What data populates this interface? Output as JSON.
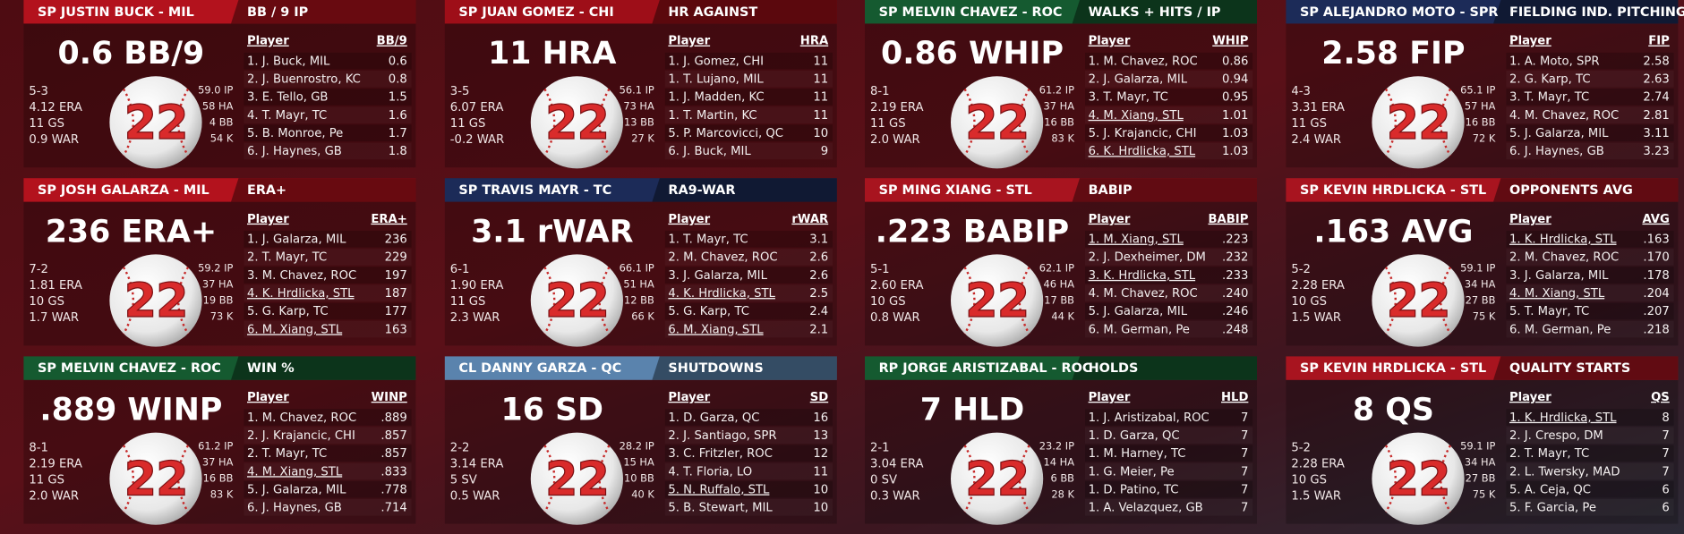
{
  "panels": [
    {
      "header": "SP JUSTIN BUCK - MIL",
      "stat_title": "BB / 9 IP",
      "headline": "0.6 BB/9",
      "header_color": "#b3121d",
      "left_stats": [
        "5-3",
        "4.12 ERA",
        "11 GS",
        "0.9 WAR"
      ],
      "right_stats": [
        "59.0 IP",
        "58 HA",
        "4 BB",
        "54 K"
      ],
      "number": "22",
      "columns": [
        "Player",
        "BB/9"
      ],
      "rows": [
        {
          "player": "1. J. Buck, MIL",
          "value": "0.6"
        },
        {
          "player": "2. J. Buenrostro, KC",
          "value": "0.8"
        },
        {
          "player": "3. E. Tello, GB",
          "value": "1.5"
        },
        {
          "player": "4. T. Mayr, TC",
          "value": "1.6"
        },
        {
          "player": "5. B. Monroe, Pe",
          "value": "1.7"
        },
        {
          "player": "6. J. Haynes, GB",
          "value": "1.8"
        }
      ]
    },
    {
      "header": "SP JUAN GOMEZ - CHI",
      "stat_title": "HR AGAINST",
      "headline": "11 HRA",
      "header_color": "#9e0e18",
      "left_stats": [
        "3-5",
        "6.07 ERA",
        "11 GS",
        "-0.2 WAR"
      ],
      "right_stats": [
        "56.1 IP",
        "73 HA",
        "13 BB",
        "27 K"
      ],
      "number": "22",
      "columns": [
        "Player",
        "HRA"
      ],
      "rows": [
        {
          "player": "1. J. Gomez, CHI",
          "value": "11"
        },
        {
          "player": "1. T. Lujano, MIL",
          "value": "11"
        },
        {
          "player": "1. J. Madden, KC",
          "value": "11"
        },
        {
          "player": "1. T. Martin, KC",
          "value": "11"
        },
        {
          "player": "5. P. Marcovicci, QC",
          "value": "10"
        },
        {
          "player": "6. J. Buck, MIL",
          "value": "9"
        }
      ]
    },
    {
      "header": "SP MELVIN CHAVEZ - ROC",
      "stat_title": "WALKS + HITS / IP",
      "headline": "0.86 WHIP",
      "header_color": "#155a30",
      "left_stats": [
        "8-1",
        "2.19 ERA",
        "11 GS",
        "2.0 WAR"
      ],
      "right_stats": [
        "61.2 IP",
        "37 HA",
        "16 BB",
        "83 K"
      ],
      "number": "22",
      "columns": [
        "Player",
        "WHIP"
      ],
      "rows": [
        {
          "player": "1. M. Chavez, ROC",
          "value": "0.86"
        },
        {
          "player": "2. J. Galarza, MIL",
          "value": "0.94"
        },
        {
          "player": "3. T. Mayr, TC",
          "value": "0.95"
        },
        {
          "player": "4. M. Xiang, STL",
          "value": "1.01",
          "underline": true
        },
        {
          "player": "5. J. Krajancic, CHI",
          "value": "1.03"
        },
        {
          "player": "6. K. Hrdlicka, STL",
          "value": "1.03",
          "underline": true
        }
      ]
    },
    {
      "header": "SP ALEJANDRO MOTO - SPR",
      "stat_title": "FIELDING IND. PITCHING",
      "headline": "2.58 FIP",
      "header_color": "#1c2b58",
      "left_stats": [
        "4-3",
        "3.31 ERA",
        "11 GS",
        "2.4 WAR"
      ],
      "right_stats": [
        "65.1 IP",
        "57 HA",
        "16 BB",
        "72 K"
      ],
      "number": "22",
      "columns": [
        "Player",
        "FIP"
      ],
      "rows": [
        {
          "player": "1. A. Moto, SPR",
          "value": "2.58"
        },
        {
          "player": "2. G. Karp, TC",
          "value": "2.63"
        },
        {
          "player": "3. T. Mayr, TC",
          "value": "2.74"
        },
        {
          "player": "4. M. Chavez, ROC",
          "value": "2.81"
        },
        {
          "player": "5. J. Galarza, MIL",
          "value": "3.11"
        },
        {
          "player": "6. J. Haynes, GB",
          "value": "3.23"
        }
      ]
    },
    {
      "header": "SP JOSH GALARZA - MIL",
      "stat_title": "ERA+",
      "headline": "236 ERA+",
      "header_color": "#b3121d",
      "left_stats": [
        "7-2",
        "1.81 ERA",
        "10 GS",
        "1.7 WAR"
      ],
      "right_stats": [
        "59.2 IP",
        "37 HA",
        "19 BB",
        "73 K"
      ],
      "number": "22",
      "columns": [
        "Player",
        "ERA+"
      ],
      "rows": [
        {
          "player": "1. J. Galarza, MIL",
          "value": "236"
        },
        {
          "player": "2. T. Mayr, TC",
          "value": "229"
        },
        {
          "player": "3. M. Chavez, ROC",
          "value": "197"
        },
        {
          "player": "4. K. Hrdlicka, STL",
          "value": "187",
          "underline": true
        },
        {
          "player": "5. G. Karp, TC",
          "value": "177"
        },
        {
          "player": "6. M. Xiang, STL",
          "value": "163",
          "underline": true
        }
      ]
    },
    {
      "header": "SP TRAVIS MAYR - TC",
      "stat_title": "RA9-WAR",
      "headline": "3.1 rWAR",
      "header_color": "#1c2b58",
      "left_stats": [
        "6-1",
        "1.90 ERA",
        "11 GS",
        "2.3 WAR"
      ],
      "right_stats": [
        "66.1 IP",
        "51 HA",
        "12 BB",
        "66 K"
      ],
      "number": "22",
      "columns": [
        "Player",
        "rWAR"
      ],
      "rows": [
        {
          "player": "1. T. Mayr, TC",
          "value": "3.1"
        },
        {
          "player": "2. M. Chavez, ROC",
          "value": "2.6"
        },
        {
          "player": "3. J. Galarza, MIL",
          "value": "2.6"
        },
        {
          "player": "4. K. Hrdlicka, STL",
          "value": "2.5",
          "underline": true
        },
        {
          "player": "5. G. Karp, TC",
          "value": "2.4"
        },
        {
          "player": "6. M. Xiang, STL",
          "value": "2.1",
          "underline": true
        }
      ]
    },
    {
      "header": "SP MING XIANG - STL",
      "stat_title": "BABIP",
      "headline": ".223 BABIP",
      "header_color": "#a8141f",
      "left_stats": [
        "5-1",
        "2.60 ERA",
        "10 GS",
        "0.8 WAR"
      ],
      "right_stats": [
        "62.1 IP",
        "46 HA",
        "17 BB",
        "44 K"
      ],
      "number": "22",
      "columns": [
        "Player",
        "BABIP"
      ],
      "rows": [
        {
          "player": "1. M. Xiang, STL",
          "value": ".223",
          "underline": true
        },
        {
          "player": "2. J. Dexheimer, DM",
          "value": ".232"
        },
        {
          "player": "3. K. Hrdlicka, STL",
          "value": ".233",
          "underline": true
        },
        {
          "player": "4. M. Chavez, ROC",
          "value": ".240"
        },
        {
          "player": "5. J. Galarza, MIL",
          "value": ".246"
        },
        {
          "player": "6. M. German, Pe",
          "value": ".248"
        }
      ]
    },
    {
      "header": "SP KEVIN HRDLICKA - STL",
      "stat_title": "OPPONENTS AVG",
      "headline": ".163 AVG",
      "header_color": "#a8141f",
      "left_stats": [
        "5-2",
        "2.28 ERA",
        "10 GS",
        "1.5 WAR"
      ],
      "right_stats": [
        "59.1 IP",
        "34 HA",
        "27 BB",
        "75 K"
      ],
      "number": "22",
      "columns": [
        "Player",
        "AVG"
      ],
      "rows": [
        {
          "player": "1. K. Hrdlicka, STL",
          "value": ".163",
          "underline": true
        },
        {
          "player": "2. M. Chavez, ROC",
          "value": ".170"
        },
        {
          "player": "3. J. Galarza, MIL",
          "value": ".178"
        },
        {
          "player": "4. M. Xiang, STL",
          "value": ".204",
          "underline": true
        },
        {
          "player": "5. T. Mayr, TC",
          "value": ".207"
        },
        {
          "player": "6. M. German, Pe",
          "value": ".218"
        }
      ]
    },
    {
      "header": "SP MELVIN CHAVEZ - ROC",
      "stat_title": "WIN %",
      "headline": ".889 WINP",
      "header_color": "#155a30",
      "left_stats": [
        "8-1",
        "2.19 ERA",
        "11 GS",
        "2.0 WAR"
      ],
      "right_stats": [
        "61.2 IP",
        "37 HA",
        "16 BB",
        "83 K"
      ],
      "number": "22",
      "columns": [
        "Player",
        "WINP"
      ],
      "rows": [
        {
          "player": "1. M. Chavez, ROC",
          "value": ".889"
        },
        {
          "player": "2. J. Krajancic, CHI",
          "value": ".857"
        },
        {
          "player": "2. T. Mayr, TC",
          "value": ".857"
        },
        {
          "player": "4. M. Xiang, STL",
          "value": ".833",
          "underline": true
        },
        {
          "player": "5. J. Galarza, MIL",
          "value": ".778"
        },
        {
          "player": "6. J. Haynes, GB",
          "value": ".714"
        }
      ]
    },
    {
      "header": "CL DANNY GARZA - QC",
      "stat_title": "SHUTDOWNS",
      "headline": "16 SD",
      "header_color": "#5a83ad",
      "left_stats": [
        "2-2",
        "3.14 ERA",
        "5 SV",
        "0.5 WAR"
      ],
      "right_stats": [
        "28.2 IP",
        "15 HA",
        "10 BB",
        "40 K"
      ],
      "number": "22",
      "columns": [
        "Player",
        "SD"
      ],
      "rows": [
        {
          "player": "1. D. Garza, QC",
          "value": "16"
        },
        {
          "player": "2. J. Santiago, SPR",
          "value": "13"
        },
        {
          "player": "3. C. Fritzler, ROC",
          "value": "12"
        },
        {
          "player": "4. T. Floria, LO",
          "value": "11"
        },
        {
          "player": "5. N. Ruffalo, STL",
          "value": "10",
          "underline": true
        },
        {
          "player": "5. B. Stewart, MIL",
          "value": "10"
        }
      ]
    },
    {
      "header": "RP JORGE ARISTIZABAL - ROC",
      "stat_title": "HOLDS",
      "headline": "7 HLD",
      "header_color": "#155a30",
      "left_stats": [
        "2-1",
        "3.04 ERA",
        "0 SV",
        "0.3 WAR"
      ],
      "right_stats": [
        "23.2 IP",
        "14 HA",
        "6 BB",
        "28 K"
      ],
      "number": "22",
      "columns": [
        "Player",
        "HLD"
      ],
      "rows": [
        {
          "player": "1. J. Aristizabal, ROC",
          "value": "7"
        },
        {
          "player": "1. D. Garza, QC",
          "value": "7"
        },
        {
          "player": "1. M. Harney, TC",
          "value": "7"
        },
        {
          "player": "1. G. Meier, Pe",
          "value": "7"
        },
        {
          "player": "1. D. Patino, TC",
          "value": "7"
        },
        {
          "player": "1. A. Velazquez, GB",
          "value": "7"
        }
      ]
    },
    {
      "header": "SP KEVIN HRDLICKA - STL",
      "stat_title": "QUALITY STARTS",
      "headline": "8 QS",
      "header_color": "#a8141f",
      "left_stats": [
        "5-2",
        "2.28 ERA",
        "10 GS",
        "1.5 WAR"
      ],
      "right_stats": [
        "59.1 IP",
        "34 HA",
        "27 BB",
        "75 K"
      ],
      "number": "22",
      "columns": [
        "Player",
        "QS"
      ],
      "rows": [
        {
          "player": "1. K. Hrdlicka, STL",
          "value": "8",
          "underline": true
        },
        {
          "player": "2. J. Crespo, DM",
          "value": "7"
        },
        {
          "player": "2. T. Mayr, TC",
          "value": "7"
        },
        {
          "player": "2. L. Twersky, MAD",
          "value": "7"
        },
        {
          "player": "5. A. Ceja, QC",
          "value": "6"
        },
        {
          "player": "5. F. Garcia, Pe",
          "value": "6"
        }
      ]
    }
  ]
}
